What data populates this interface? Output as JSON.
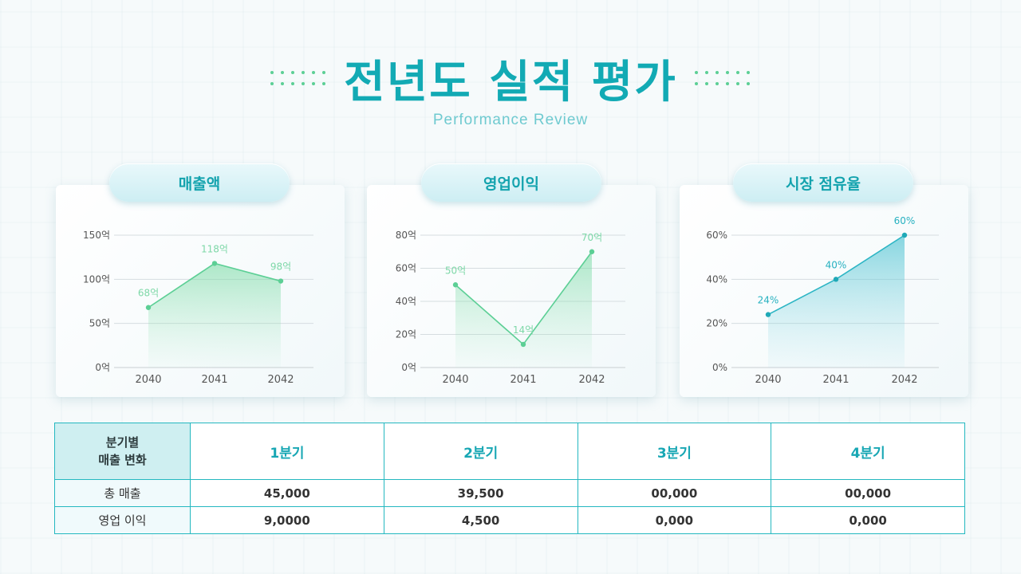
{
  "title": "전년도 실적 평가",
  "subtitle": "Performance Review",
  "colors": {
    "accent": "#12aab4",
    "green": "#5ccf95",
    "teal": "#2cb5c4"
  },
  "charts": [
    {
      "label": "매출액",
      "chart_data": {
        "type": "area",
        "categories": [
          "2040",
          "2041",
          "2042"
        ],
        "values": [
          68,
          118,
          98
        ],
        "data_labels": [
          "68억",
          "118억",
          "98억"
        ],
        "y_ticks": [
          "0억",
          "50억",
          "100억",
          "150억"
        ],
        "ylim": [
          0,
          150
        ],
        "grid": true
      }
    },
    {
      "label": "영업이익",
      "chart_data": {
        "type": "area",
        "categories": [
          "2040",
          "2041",
          "2042"
        ],
        "values": [
          50,
          14,
          70
        ],
        "data_labels": [
          "50억",
          "14억",
          "70억"
        ],
        "y_ticks": [
          "0억",
          "20억",
          "40억",
          "60억",
          "80억"
        ],
        "ylim": [
          0,
          80
        ],
        "grid": true
      }
    },
    {
      "label": "시장 점유율",
      "chart_data": {
        "type": "area",
        "categories": [
          "2040",
          "2041",
          "2042"
        ],
        "values": [
          24,
          40,
          60
        ],
        "data_labels": [
          "24%",
          "40%",
          "60%"
        ],
        "y_ticks": [
          "0%",
          "20%",
          "40%",
          "60%"
        ],
        "ylim": [
          0,
          60
        ],
        "grid": true
      }
    }
  ],
  "table": {
    "corner": [
      "분기별",
      "매출 변화"
    ],
    "headers": [
      "1분기",
      "2분기",
      "3분기",
      "4분기"
    ],
    "rows": [
      {
        "label": "총 매출",
        "values": [
          "45,000",
          "39,500",
          "00,000",
          "00,000"
        ]
      },
      {
        "label": "영업 이익",
        "values": [
          "9,0000",
          "4,500",
          "0,000",
          "0,000"
        ]
      }
    ]
  }
}
